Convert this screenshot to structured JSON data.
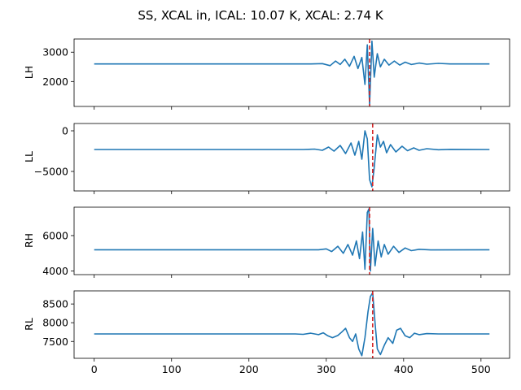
{
  "chart_data": {
    "type": "line",
    "title": "SS, XCAL in, ICAL: 10.07 K, XCAL: 2.74 K",
    "xlim": [
      -26,
      537
    ],
    "xticks": [
      0,
      100,
      200,
      300,
      400,
      500
    ],
    "series_color": "#1f77b4",
    "marker_color": "#d62728",
    "panels": [
      {
        "name": "LH",
        "ylabel": "LH",
        "ylim": [
          1150,
          3450
        ],
        "yticks": [
          {
            "v": 2000,
            "label": "2000"
          },
          {
            "v": 3000,
            "label": "3000"
          }
        ],
        "marker_x": 356,
        "baseline": 2600,
        "points": [
          [
            0,
            2600
          ],
          [
            280,
            2600
          ],
          [
            295,
            2610
          ],
          [
            305,
            2540
          ],
          [
            312,
            2700
          ],
          [
            318,
            2580
          ],
          [
            324,
            2760
          ],
          [
            330,
            2520
          ],
          [
            336,
            2860
          ],
          [
            341,
            2440
          ],
          [
            346,
            2820
          ],
          [
            350,
            1900
          ],
          [
            353,
            3250
          ],
          [
            356,
            1200
          ],
          [
            359,
            3380
          ],
          [
            362,
            2150
          ],
          [
            366,
            2950
          ],
          [
            370,
            2500
          ],
          [
            375,
            2760
          ],
          [
            381,
            2560
          ],
          [
            388,
            2700
          ],
          [
            395,
            2560
          ],
          [
            402,
            2660
          ],
          [
            410,
            2580
          ],
          [
            420,
            2630
          ],
          [
            430,
            2590
          ],
          [
            445,
            2620
          ],
          [
            460,
            2600
          ],
          [
            511,
            2600
          ]
        ]
      },
      {
        "name": "LL",
        "ylabel": "LL",
        "ylim": [
          -7400,
          900
        ],
        "yticks": [
          {
            "v": -5000,
            "label": "−5000"
          },
          {
            "v": 0,
            "label": "0"
          }
        ],
        "marker_x": 360,
        "baseline": -2300,
        "points": [
          [
            0,
            -2300
          ],
          [
            270,
            -2300
          ],
          [
            285,
            -2250
          ],
          [
            295,
            -2400
          ],
          [
            303,
            -2000
          ],
          [
            310,
            -2500
          ],
          [
            318,
            -1800
          ],
          [
            325,
            -2800
          ],
          [
            332,
            -1500
          ],
          [
            337,
            -3000
          ],
          [
            342,
            -1300
          ],
          [
            346,
            -3500
          ],
          [
            350,
            0
          ],
          [
            353,
            -1000
          ],
          [
            356,
            -6000
          ],
          [
            359,
            -6900
          ],
          [
            362,
            -4500
          ],
          [
            366,
            -500
          ],
          [
            370,
            -2000
          ],
          [
            374,
            -1300
          ],
          [
            378,
            -2700
          ],
          [
            383,
            -1700
          ],
          [
            390,
            -2600
          ],
          [
            398,
            -1900
          ],
          [
            405,
            -2450
          ],
          [
            413,
            -2100
          ],
          [
            420,
            -2400
          ],
          [
            430,
            -2200
          ],
          [
            445,
            -2330
          ],
          [
            460,
            -2280
          ],
          [
            511,
            -2300
          ]
        ]
      },
      {
        "name": "RH",
        "ylabel": "RH",
        "ylim": [
          3800,
          7600
        ],
        "yticks": [
          {
            "v": 4000,
            "label": "4000"
          },
          {
            "v": 6000,
            "label": "6000"
          }
        ],
        "marker_x": 356,
        "baseline": 5200,
        "points": [
          [
            0,
            5200
          ],
          [
            290,
            5200
          ],
          [
            300,
            5250
          ],
          [
            307,
            5100
          ],
          [
            315,
            5400
          ],
          [
            322,
            5000
          ],
          [
            328,
            5500
          ],
          [
            334,
            4900
          ],
          [
            339,
            5700
          ],
          [
            343,
            4700
          ],
          [
            347,
            6200
          ],
          [
            350,
            4100
          ],
          [
            353,
            7300
          ],
          [
            355,
            7500
          ],
          [
            357,
            4000
          ],
          [
            360,
            6400
          ],
          [
            363,
            4300
          ],
          [
            367,
            5700
          ],
          [
            371,
            4800
          ],
          [
            375,
            5500
          ],
          [
            380,
            4950
          ],
          [
            387,
            5400
          ],
          [
            394,
            5050
          ],
          [
            402,
            5300
          ],
          [
            410,
            5150
          ],
          [
            420,
            5230
          ],
          [
            435,
            5190
          ],
          [
            511,
            5200
          ]
        ]
      },
      {
        "name": "RL",
        "ylabel": "RL",
        "ylim": [
          7050,
          8850
        ],
        "yticks": [
          {
            "v": 7500,
            "label": "7500"
          },
          {
            "v": 8000,
            "label": "8000"
          },
          {
            "v": 8500,
            "label": "8500"
          }
        ],
        "marker_x": 360,
        "baseline": 7700,
        "points": [
          [
            0,
            7700
          ],
          [
            260,
            7700
          ],
          [
            270,
            7690
          ],
          [
            280,
            7720
          ],
          [
            290,
            7680
          ],
          [
            296,
            7730
          ],
          [
            302,
            7650
          ],
          [
            308,
            7600
          ],
          [
            315,
            7660
          ],
          [
            320,
            7750
          ],
          [
            325,
            7850
          ],
          [
            330,
            7600
          ],
          [
            334,
            7500
          ],
          [
            338,
            7700
          ],
          [
            342,
            7300
          ],
          [
            346,
            7120
          ],
          [
            350,
            7600
          ],
          [
            354,
            8300
          ],
          [
            357,
            8700
          ],
          [
            360,
            8800
          ],
          [
            363,
            8000
          ],
          [
            366,
            7300
          ],
          [
            370,
            7150
          ],
          [
            375,
            7400
          ],
          [
            380,
            7600
          ],
          [
            386,
            7450
          ],
          [
            391,
            7800
          ],
          [
            396,
            7850
          ],
          [
            402,
            7650
          ],
          [
            408,
            7600
          ],
          [
            414,
            7720
          ],
          [
            420,
            7680
          ],
          [
            430,
            7710
          ],
          [
            445,
            7700
          ],
          [
            511,
            7700
          ]
        ]
      }
    ]
  }
}
